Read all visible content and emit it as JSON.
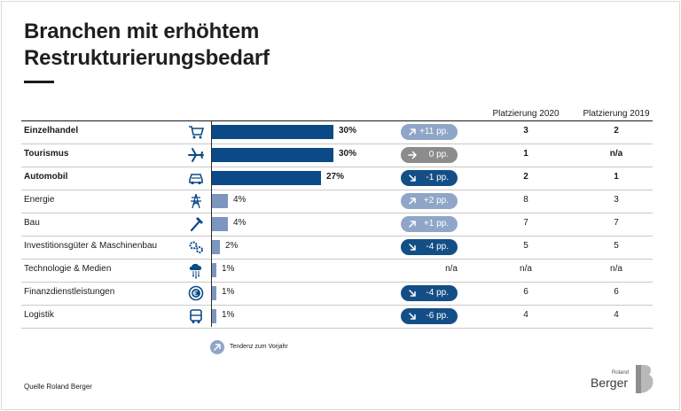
{
  "title": {
    "line1": "Branchen mit erhöhtem",
    "line2": "Restrukturierungsbedarf"
  },
  "columns": {
    "rank2020": "Platzierung 2020",
    "rank2019": "Platzierung 2019"
  },
  "chart_data": {
    "type": "bar",
    "xlim": [
      0,
      30
    ],
    "categories": [
      "Einzelhandel",
      "Tourismus",
      "Automobil",
      "Energie",
      "Bau",
      "Investitionsgüter & Maschinenbau",
      "Technologie & Medien",
      "Finanzdienstleistungen",
      "Logistik"
    ],
    "values": [
      30,
      30,
      27,
      4,
      4,
      2,
      1,
      1,
      1
    ],
    "value_labels": [
      "30%",
      "30%",
      "27%",
      "4%",
      "4%",
      "2%",
      "1%",
      "1%",
      "1%"
    ],
    "trend_labels": [
      "+11 pp.",
      "0 pp.",
      "-1 pp.",
      "+2 pp.",
      "+1 pp.",
      "-4 pp.",
      "n/a",
      "-4 pp.",
      "-6 pp."
    ],
    "trend_direction": [
      "up",
      "flat",
      "down",
      "up",
      "up",
      "down",
      "none",
      "down",
      "down"
    ],
    "rank_2020": [
      "3",
      "1",
      "2",
      "8",
      "7",
      "5",
      "n/a",
      "6",
      "4"
    ],
    "rank_2019": [
      "2",
      "n/a",
      "1",
      "3",
      "7",
      "5",
      "n/a",
      "6",
      "4"
    ],
    "highlighted": [
      true,
      true,
      true,
      false,
      false,
      false,
      false,
      false,
      false
    ],
    "icons": [
      "shopping-cart-icon",
      "airplane-icon",
      "car-icon",
      "power-tower-icon",
      "hammer-icon",
      "gears-icon",
      "cloud-network-icon",
      "euro-coin-icon",
      "truck-icon"
    ]
  },
  "legend": {
    "label": "Tendenz zum Vorjahr"
  },
  "source": "Quelle Roland Berger",
  "logo": {
    "small": "Roland",
    "big": "Berger"
  },
  "colors": {
    "bar_dark": "#0b4a86",
    "bar_light": "#7b96bf",
    "trend_up": "#8fa6c8",
    "trend_flat": "#8c8c8c",
    "trend_down": "#134f86"
  }
}
